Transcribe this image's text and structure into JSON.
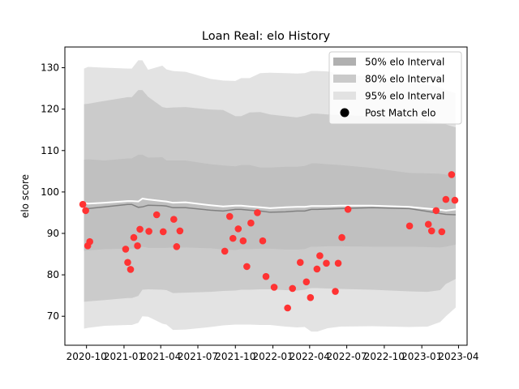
{
  "chart_data": {
    "type": "line",
    "title": "Loan Real: elo History",
    "xlabel": "",
    "ylabel": "elo score",
    "x_ticks": [
      "2020-10",
      "2021-01",
      "2021-04",
      "2021-07",
      "2021-10",
      "2022-01",
      "2022-04",
      "2022-07",
      "2022-10",
      "2023-01",
      "2023-04"
    ],
    "y_ticks": [
      70,
      80,
      90,
      100,
      110,
      120,
      130
    ],
    "ylim": [
      63,
      135
    ],
    "xlim": [
      "2020-08-09",
      "2023-04-22"
    ],
    "legend": {
      "placement": "top-right",
      "entries": [
        {
          "label": "50% elo Interval",
          "color": "#b0b0b0",
          "kind": "patch"
        },
        {
          "label": "80% elo Interval",
          "color": "#cacaca",
          "kind": "patch"
        },
        {
          "label": "95% elo Interval",
          "color": "#e2e2e2",
          "kind": "patch"
        },
        {
          "label": "Post Match elo",
          "color": "#000000",
          "kind": "marker"
        }
      ]
    },
    "colors": {
      "band95": "#e3e3e3",
      "band80": "#cbcbcb",
      "band50": "#c0c0c0",
      "median": "#808080",
      "mean": "#ffffff",
      "points": "#ff3333"
    },
    "bands": {
      "x": [
        "2020-09-25",
        "2020-10-05",
        "2020-11-15",
        "2021-01-10",
        "2021-01-20",
        "2021-02-05",
        "2021-02-15",
        "2021-03-01",
        "2021-04-05",
        "2021-04-15",
        "2021-05-01",
        "2021-06-01",
        "2021-08-01",
        "2021-09-01",
        "2021-10-01",
        "2021-10-15",
        "2021-11-05",
        "2021-12-01",
        "2021-12-25",
        "2022-02-01",
        "2022-03-01",
        "2022-03-20",
        "2022-04-05",
        "2022-04-20",
        "2022-05-15",
        "2022-06-15",
        "2022-09-01",
        "2022-12-01",
        "2023-01-15",
        "2023-02-15",
        "2023-03-01",
        "2023-03-25"
      ],
      "p95_hi": [
        129.8,
        130.2,
        130.0,
        129.8,
        129.8,
        131.8,
        131.8,
        129.5,
        130.5,
        129.6,
        129.2,
        129.0,
        127.3,
        126.9,
        126.8,
        127.5,
        127.5,
        128.7,
        128.8,
        128.7,
        128.6,
        128.7,
        129.2,
        129.2,
        129.1,
        128.5,
        127.7,
        126.3,
        125.9,
        125.3,
        124.6,
        123.8
      ],
      "p80_hi": [
        121.2,
        121.3,
        122.0,
        122.9,
        122.9,
        124.6,
        124.6,
        123.0,
        120.5,
        120.3,
        120.4,
        120.5,
        119.9,
        119.8,
        118.3,
        118.3,
        119.2,
        119.3,
        118.7,
        118.3,
        118.0,
        118.4,
        118.9,
        118.9,
        118.7,
        118.6,
        118.3,
        117.7,
        117.1,
        116.6,
        116.3,
        115.6
      ],
      "p50_hi": [
        107.8,
        107.9,
        107.6,
        108.1,
        108.1,
        109.0,
        109.0,
        108.3,
        108.4,
        107.6,
        107.6,
        107.6,
        106.7,
        106.4,
        106.2,
        106.5,
        106.5,
        105.9,
        105.9,
        106.1,
        106.1,
        106.3,
        106.9,
        106.9,
        106.7,
        106.5,
        105.8,
        104.6,
        104.5,
        104.4,
        104.2,
        103.8
      ],
      "p50_lo": [
        85.8,
        85.9,
        86.2,
        86.3,
        86.3,
        86.4,
        86.8,
        86.5,
        86.5,
        86.5,
        86.6,
        86.6,
        86.4,
        86.1,
        86.0,
        86.2,
        86.2,
        86.3,
        86.3,
        86.1,
        86.1,
        86.2,
        86.8,
        86.8,
        86.9,
        86.9,
        86.8,
        86.8,
        86.7,
        86.6,
        86.8,
        87.3
      ],
      "p80_lo": [
        73.5,
        73.6,
        73.9,
        74.4,
        74.4,
        74.9,
        76.4,
        76.5,
        76.4,
        76.3,
        75.6,
        75.7,
        75.9,
        76.1,
        76.2,
        76.4,
        76.4,
        76.5,
        76.5,
        76.3,
        76.2,
        76.4,
        76.8,
        76.8,
        76.7,
        76.6,
        76.4,
        76.0,
        75.9,
        76.3,
        77.8,
        79.0
      ],
      "p95_lo": [
        67.0,
        67.2,
        67.7,
        67.9,
        67.9,
        68.4,
        70.0,
        69.9,
        68.2,
        68.0,
        66.7,
        66.8,
        67.4,
        67.8,
        68.0,
        68.0,
        68.0,
        67.9,
        67.9,
        67.5,
        67.3,
        67.4,
        66.3,
        66.3,
        67.1,
        67.5,
        67.6,
        67.4,
        67.5,
        68.6,
        70.0,
        72.1
      ],
      "median": [
        96.2,
        96.0,
        96.4,
        97.0,
        97.0,
        96.3,
        96.4,
        96.8,
        96.7,
        96.6,
        96.2,
        96.2,
        95.6,
        95.4,
        95.8,
        95.8,
        95.6,
        95.4,
        95.1,
        95.2,
        95.4,
        95.4,
        95.8,
        95.8,
        95.9,
        96.0,
        96.2,
        96.0,
        95.3,
        94.8,
        94.6,
        94.5
      ],
      "mean": [
        97.4,
        97.2,
        97.4,
        97.8,
        97.8,
        97.7,
        98.4,
        98.2,
        97.8,
        97.7,
        97.4,
        97.5,
        96.8,
        96.5,
        96.7,
        96.7,
        96.5,
        96.3,
        96.1,
        96.3,
        96.4,
        96.4,
        96.6,
        96.6,
        96.6,
        96.7,
        96.7,
        96.4,
        96.0,
        95.7,
        95.5,
        95.8
      ]
    },
    "points": [
      {
        "x": "2020-09-22",
        "y": 97.0
      },
      {
        "x": "2020-09-29",
        "y": 95.5
      },
      {
        "x": "2020-10-04",
        "y": 87.0
      },
      {
        "x": "2020-10-09",
        "y": 88.0
      },
      {
        "x": "2021-01-05",
        "y": 86.2
      },
      {
        "x": "2021-01-10",
        "y": 83.0
      },
      {
        "x": "2021-01-17",
        "y": 81.3
      },
      {
        "x": "2021-01-25",
        "y": 89.0
      },
      {
        "x": "2021-02-03",
        "y": 87.0
      },
      {
        "x": "2021-02-09",
        "y": 91.0
      },
      {
        "x": "2021-03-03",
        "y": 90.5
      },
      {
        "x": "2021-03-22",
        "y": 94.5
      },
      {
        "x": "2021-04-07",
        "y": 90.4
      },
      {
        "x": "2021-05-03",
        "y": 93.4
      },
      {
        "x": "2021-05-10",
        "y": 86.8
      },
      {
        "x": "2021-05-18",
        "y": 90.6
      },
      {
        "x": "2021-09-05",
        "y": 85.7
      },
      {
        "x": "2021-09-17",
        "y": 94.1
      },
      {
        "x": "2021-09-25",
        "y": 88.8
      },
      {
        "x": "2021-10-08",
        "y": 91.1
      },
      {
        "x": "2021-10-20",
        "y": 88.2
      },
      {
        "x": "2021-10-29",
        "y": 82.0
      },
      {
        "x": "2021-11-08",
        "y": 92.5
      },
      {
        "x": "2021-11-24",
        "y": 95.0
      },
      {
        "x": "2021-12-07",
        "y": 88.2
      },
      {
        "x": "2021-12-15",
        "y": 79.6
      },
      {
        "x": "2022-01-04",
        "y": 77.0
      },
      {
        "x": "2022-02-06",
        "y": 72.0
      },
      {
        "x": "2022-02-18",
        "y": 76.7
      },
      {
        "x": "2022-03-09",
        "y": 83.0
      },
      {
        "x": "2022-03-24",
        "y": 78.3
      },
      {
        "x": "2022-04-03",
        "y": 74.5
      },
      {
        "x": "2022-04-19",
        "y": 81.4
      },
      {
        "x": "2022-04-26",
        "y": 84.6
      },
      {
        "x": "2022-05-12",
        "y": 82.8
      },
      {
        "x": "2022-06-03",
        "y": 76.0
      },
      {
        "x": "2022-06-10",
        "y": 82.8
      },
      {
        "x": "2022-06-19",
        "y": 89.0
      },
      {
        "x": "2022-07-04",
        "y": 95.8
      },
      {
        "x": "2022-12-02",
        "y": 91.8
      },
      {
        "x": "2023-01-17",
        "y": 92.2
      },
      {
        "x": "2023-01-25",
        "y": 90.6
      },
      {
        "x": "2023-02-05",
        "y": 95.5
      },
      {
        "x": "2023-02-19",
        "y": 90.4
      },
      {
        "x": "2023-03-01",
        "y": 98.2
      },
      {
        "x": "2023-03-15",
        "y": 104.2
      },
      {
        "x": "2023-03-23",
        "y": 98.0
      }
    ]
  }
}
